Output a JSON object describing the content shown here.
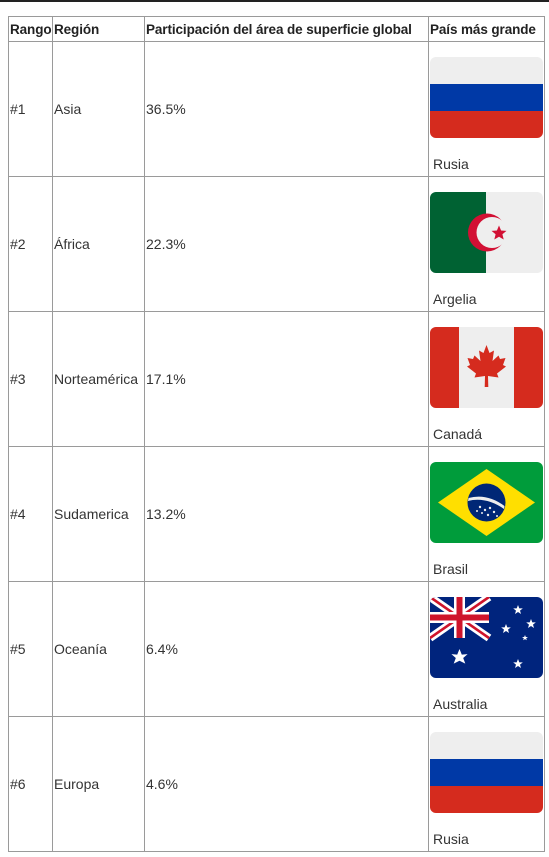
{
  "table": {
    "headers": {
      "rank": "Rango",
      "region": "Región",
      "share": "Participación del área de superficie global",
      "largest": "País más grande"
    },
    "rows": [
      {
        "rank": "#1",
        "region": "Asia",
        "share": "36.5%",
        "country": "Rusia",
        "flag_icon": "russia-flag-icon"
      },
      {
        "rank": "#2",
        "region": "África",
        "share": "22.3%",
        "country": "Argelia",
        "flag_icon": "algeria-flag-icon"
      },
      {
        "rank": "#3",
        "region": "Norteamérica",
        "share": "17.1%",
        "country": "Canadá",
        "flag_icon": "canada-flag-icon"
      },
      {
        "rank": "#4",
        "region": "Sudamerica",
        "share": "13.2%",
        "country": "Brasil",
        "flag_icon": "brazil-flag-icon"
      },
      {
        "rank": "#5",
        "region": "Oceanía",
        "share": "6.4%",
        "country": "Australia",
        "flag_icon": "australia-flag-icon"
      },
      {
        "rank": "#6",
        "region": "Europa",
        "share": "4.6%",
        "country": "Rusia",
        "flag_icon": "russia-flag-icon"
      }
    ]
  },
  "colors": {
    "border": "#9a9a9a",
    "text": "#333333",
    "russia_white": "#eeeeee",
    "russia_blue": "#0039a6",
    "russia_red": "#d52b1e",
    "algeria_green": "#006233",
    "algeria_red": "#d21034",
    "canada_red": "#d52b1e",
    "brazil_green": "#009c3b",
    "brazil_yellow": "#ffdf00",
    "brazil_blue": "#002776",
    "australia_blue": "#00247d"
  }
}
